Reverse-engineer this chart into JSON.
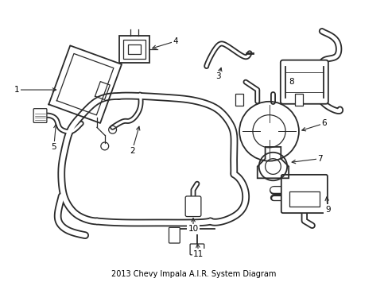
{
  "title": "2013 Chevy Impala A.I.R. System Diagram",
  "bg_color": "#ffffff",
  "line_color": "#2a2a2a",
  "label_color": "#000000",
  "fig_width": 4.89,
  "fig_height": 3.6,
  "dpi": 100
}
